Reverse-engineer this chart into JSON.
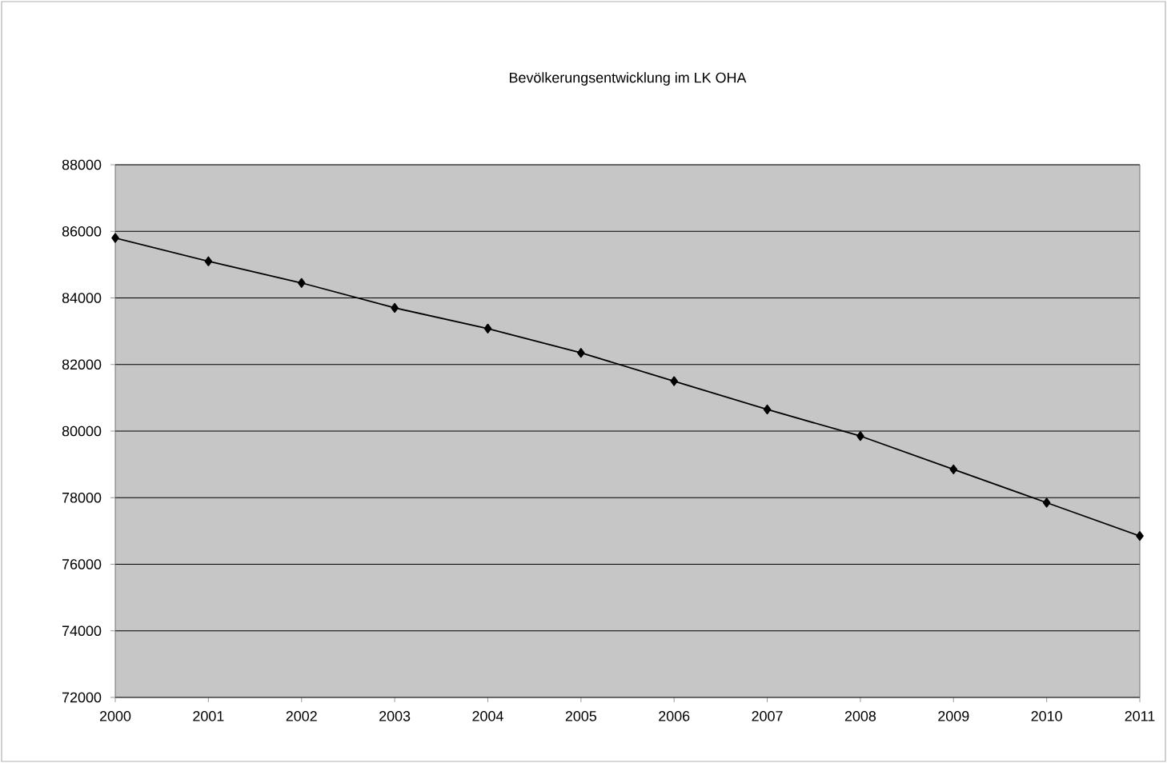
{
  "chart_data": {
    "type": "line",
    "title": "Bevölkerungsentwicklung im LK OHA",
    "categories": [
      "2000",
      "2001",
      "2002",
      "2003",
      "2004",
      "2005",
      "2006",
      "2007",
      "2008",
      "2009",
      "2010",
      "2011"
    ],
    "series": [
      {
        "color": "#000000",
        "values": [
          85800,
          85100,
          84450,
          83700,
          83080,
          82350,
          81500,
          80650,
          79850,
          78850,
          77850,
          76850
        ]
      }
    ],
    "ylim": [
      72000,
      88000
    ],
    "yticks": [
      72000,
      74000,
      76000,
      78000,
      80000,
      82000,
      84000,
      86000,
      88000
    ],
    "grid": "y",
    "marker": "diamond",
    "line_style": "solid"
  }
}
